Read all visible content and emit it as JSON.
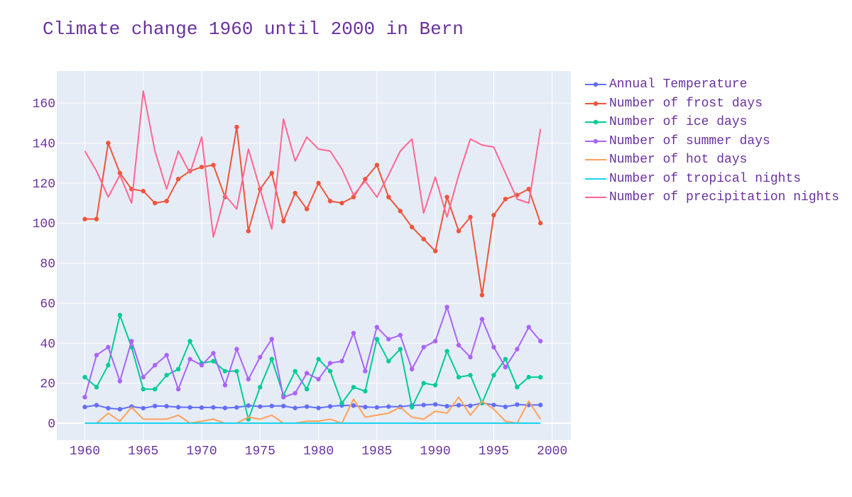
{
  "title": "Climate change 1960 until 2000 in Bern",
  "chart_data": {
    "type": "line",
    "title": "Climate change 1960 until 2000 in Bern",
    "xlabel": "",
    "ylabel": "",
    "xlim": [
      1957.6,
      2001.6
    ],
    "ylim": [
      -8.5,
      176
    ],
    "x_ticks": [
      1960,
      1965,
      1970,
      1975,
      1980,
      1985,
      1990,
      1995,
      2000
    ],
    "y_ticks": [
      0,
      20,
      40,
      60,
      80,
      100,
      120,
      140,
      160
    ],
    "grid": true,
    "legend_position": "right",
    "x": [
      1960,
      1961,
      1962,
      1963,
      1964,
      1965,
      1966,
      1967,
      1968,
      1969,
      1970,
      1971,
      1972,
      1973,
      1974,
      1975,
      1976,
      1977,
      1978,
      1979,
      1980,
      1981,
      1982,
      1983,
      1984,
      1985,
      1986,
      1987,
      1988,
      1989,
      1990,
      1991,
      1992,
      1993,
      1994,
      1995,
      1996,
      1997,
      1998,
      1999
    ],
    "series": [
      {
        "name": "Annual Temperature",
        "color": "#636efa",
        "mode": "lines+markers",
        "values": [
          8.1,
          9,
          7.5,
          7,
          8.3,
          7.5,
          8.6,
          8.5,
          8,
          7.9,
          7.8,
          7.9,
          7.6,
          7.9,
          8.8,
          8.3,
          8.6,
          8.6,
          7.6,
          8.3,
          7.6,
          8.4,
          8.9,
          8.8,
          8.1,
          7.9,
          8.3,
          8.2,
          8.9,
          9.1,
          9.4,
          8.5,
          9,
          8.7,
          10.1,
          9.1,
          8.2,
          9.3,
          9.1,
          9.1
        ]
      },
      {
        "name": "Number of frost days",
        "color": "#ef553b",
        "mode": "lines+markers",
        "values": [
          102,
          102,
          140,
          125,
          117,
          116,
          110,
          111,
          122,
          126,
          128,
          129,
          113,
          148,
          96,
          117,
          125,
          101,
          115,
          107,
          120,
          111,
          110,
          113,
          122,
          129,
          113,
          106,
          98,
          92,
          86,
          113,
          96,
          103,
          64,
          104,
          112,
          114,
          117,
          100
        ]
      },
      {
        "name": "Number of ice days",
        "color": "#00cc96",
        "mode": "lines+markers",
        "values": [
          23,
          18,
          29,
          54,
          38,
          17,
          17,
          24,
          27,
          41,
          30,
          31,
          26,
          26,
          2,
          18,
          32,
          14,
          26,
          17,
          32,
          26,
          10,
          18,
          16,
          42,
          31,
          37,
          8,
          20,
          19,
          36,
          23,
          24,
          10,
          24,
          32,
          18,
          23,
          23
        ]
      },
      {
        "name": "Number of summer days",
        "color": "#ab63fa",
        "mode": "lines+markers",
        "values": [
          13,
          34,
          38,
          21,
          41,
          23,
          29,
          34,
          17,
          32,
          29,
          35,
          19,
          37,
          22,
          33,
          42,
          13,
          15,
          25,
          22,
          30,
          31,
          45,
          26,
          48,
          42,
          44,
          27,
          38,
          41,
          58,
          39,
          33,
          52,
          38,
          28,
          37,
          48,
          41
        ]
      },
      {
        "name": "Number of hot days",
        "color": "#ffa15a",
        "mode": "lines",
        "values": [
          0,
          0,
          5,
          1,
          8,
          2,
          2,
          2,
          4,
          0,
          1,
          2,
          0,
          0,
          3,
          2,
          4,
          0,
          0,
          1,
          1,
          2,
          0,
          12,
          3,
          4,
          5,
          8,
          3,
          2,
          6,
          5,
          13,
          4,
          11,
          7,
          1,
          0,
          11,
          2
        ]
      },
      {
        "name": "Number of tropical nights",
        "color": "#19d3f3",
        "mode": "lines",
        "values": [
          0,
          0,
          0,
          0,
          0,
          0,
          0,
          0,
          0,
          0,
          0,
          0,
          0,
          0,
          0,
          0,
          0,
          0,
          0,
          0,
          0,
          0,
          0,
          0,
          0,
          0,
          0,
          0,
          0,
          0,
          0,
          0,
          0,
          0,
          0,
          0,
          0,
          0,
          0,
          0
        ]
      },
      {
        "name": "Number of precipitation nights",
        "color": "#ff6692",
        "mode": "lines",
        "values": [
          136,
          126,
          113,
          124,
          110,
          166,
          136,
          117,
          136,
          125,
          143,
          93,
          114,
          107,
          137,
          117,
          97,
          152,
          131,
          143,
          137,
          136,
          127,
          114,
          121,
          113,
          124,
          136,
          142,
          105,
          123,
          103,
          124,
          142,
          139,
          138,
          125,
          112,
          110,
          147
        ]
      }
    ]
  }
}
